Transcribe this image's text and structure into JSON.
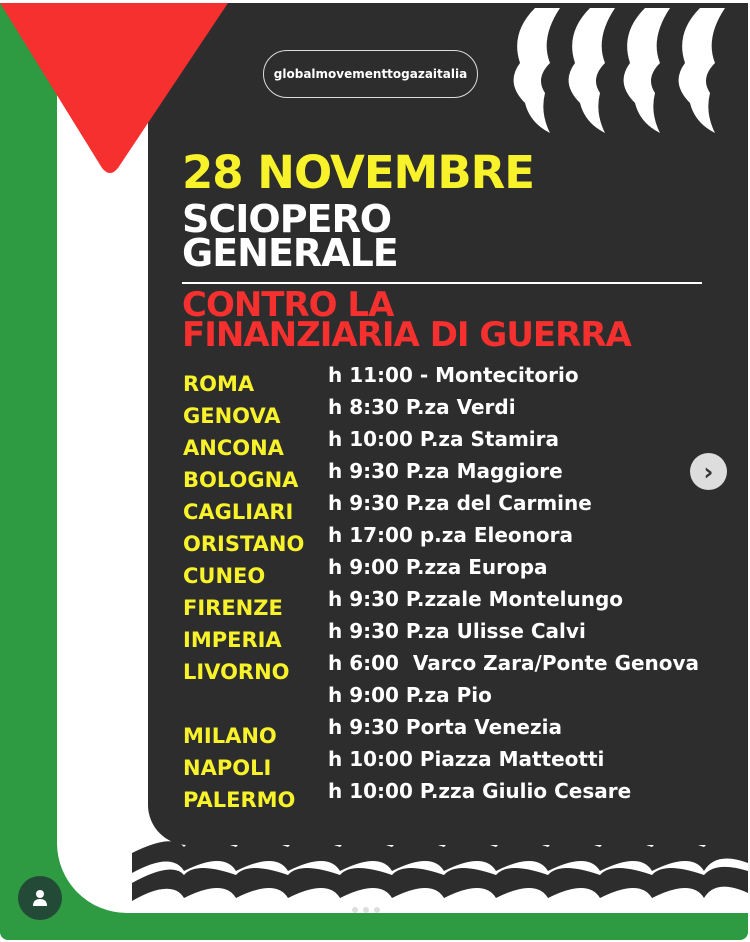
{
  "post": {
    "handle": "globalmovementtogazaitalia",
    "date": "28 NOVEMBRE",
    "headline_lines": [
      "SCIOPERO",
      "GENERALE"
    ],
    "subhead_lines": [
      "CONTRO LA",
      "FINANZIARIA DI GUERRA"
    ],
    "events": [
      {
        "city": "ROMA",
        "time": "h 11:00 - Montecitorio"
      },
      {
        "city": "GENOVA",
        "time": "h 8:30 P.za Verdi"
      },
      {
        "city": "ANCONA",
        "time": "h 10:00 P.za Stamira"
      },
      {
        "city": "BOLOGNA",
        "time": "h 9:30 P.za Maggiore"
      },
      {
        "city": "CAGLIARI",
        "time": "h 9:30 P.za del Carmine"
      },
      {
        "city": "ORISTANO",
        "time": "h 17:00 p.za Eleonora"
      },
      {
        "city": "CUNEO",
        "time": "h 9:00 P.zza Europa"
      },
      {
        "city": "FIRENZE",
        "time": "h 9:30 P.zzale Montelungo"
      },
      {
        "city": "IMPERIA",
        "time": "h 9:30 P.za Ulisse Calvi"
      },
      {
        "city": "LIVORNO",
        "time": "h 6:00  Varco Zara/Ponte Genova"
      },
      {
        "city": "",
        "time": "h 9:00 P.za Pio"
      },
      {
        "city": "MILANO",
        "time": "h 9:30 Porta Venezia"
      },
      {
        "city": "NAPOLI",
        "time": "h 10:00 Piazza Matteotti"
      },
      {
        "city": "PALERMO",
        "time": "h 10:00 P.zza Giulio Cesare"
      }
    ]
  },
  "carousel": {
    "next_icon": "chevron-right-icon",
    "pages": 3,
    "current_page": 1
  },
  "colors": {
    "green": "#2e9a42",
    "red": "#f5302e",
    "dark": "#2d2d2d",
    "yellow": "#f7f22a"
  }
}
